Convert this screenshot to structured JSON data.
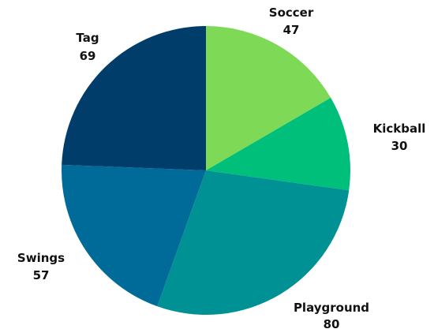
{
  "chart_data": {
    "type": "pie",
    "title": "",
    "start_angle_deg": 0,
    "direction": "clockwise",
    "slices": [
      {
        "label": "Soccer",
        "value": 47,
        "value_label": "47",
        "color": "#7ED957"
      },
      {
        "label": "Kickball",
        "value": 30,
        "value_label": "30",
        "color": "#00BF7A"
      },
      {
        "label": "Playground",
        "value": 80,
        "value_label": "80",
        "color": "#009194"
      },
      {
        "label": "Swings",
        "value": 57,
        "value_label": "57",
        "color": "#006B99"
      },
      {
        "label": "Tag",
        "value": 69,
        "value_label": "69",
        "color": "#003D6B"
      }
    ]
  }
}
